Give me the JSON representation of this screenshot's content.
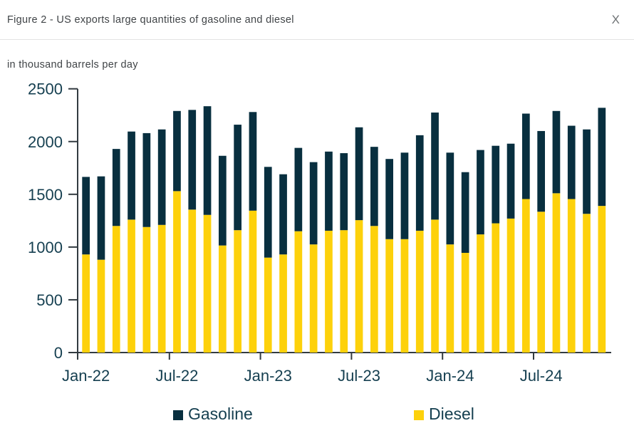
{
  "window": {
    "title": "Figure 2 - US exports large quantities of gasoline and diesel",
    "close_label": "X"
  },
  "chart_data": {
    "type": "bar",
    "stacked": true,
    "title": "Figure 2 - US exports large quantities of gasoline and diesel",
    "subtitle": "in thousand barrels per day",
    "unit": "thousand barrels per day",
    "categories": [
      "Jan-22",
      "Feb-22",
      "Mar-22",
      "Apr-22",
      "May-22",
      "Jun-22",
      "Jul-22",
      "Aug-22",
      "Sep-22",
      "Oct-22",
      "Nov-22",
      "Dec-22",
      "Jan-23",
      "Feb-23",
      "Mar-23",
      "Apr-23",
      "May-23",
      "Jun-23",
      "Jul-23",
      "Aug-23",
      "Sep-23",
      "Oct-23",
      "Nov-23",
      "Dec-23",
      "Jan-24",
      "Feb-24",
      "Mar-24",
      "Apr-24",
      "May-24",
      "Jun-24",
      "Jul-24",
      "Aug-24",
      "Sep-24",
      "Oct-24",
      "Nov-24"
    ],
    "series": [
      {
        "name": "Gasoline",
        "color": "#082F3F",
        "stack_position": "top",
        "values": [
          735,
          790,
          730,
          835,
          890,
          905,
          760,
          945,
          1030,
          850,
          1000,
          935,
          860,
          760,
          790,
          780,
          750,
          730,
          880,
          750,
          760,
          820,
          905,
          1015,
          870,
          765,
          800,
          735,
          710,
          810,
          765,
          780,
          695,
          800,
          930
        ]
      },
      {
        "name": "Diesel",
        "color": "#FDD10B",
        "stack_position": "bottom",
        "values": [
          930,
          880,
          1200,
          1260,
          1190,
          1210,
          1530,
          1355,
          1305,
          1015,
          1160,
          1345,
          900,
          930,
          1150,
          1025,
          1155,
          1160,
          1255,
          1200,
          1075,
          1075,
          1155,
          1260,
          1025,
          945,
          1120,
          1225,
          1270,
          1455,
          1335,
          1510,
          1455,
          1315,
          1390
        ]
      }
    ],
    "ylim": [
      0,
      2500
    ],
    "y_ticks": [
      0,
      500,
      1000,
      1500,
      2000,
      2500
    ],
    "x_tick_labels": [
      "Jan-22",
      "Jul-22",
      "Jan-23",
      "Jul-23",
      "Jan-24",
      "Jul-24"
    ],
    "x_tick_interval_months": 6,
    "grid": false,
    "legend_position": "bottom",
    "axis_text_color": "#153F50",
    "axis_line_color": "#323A40"
  }
}
